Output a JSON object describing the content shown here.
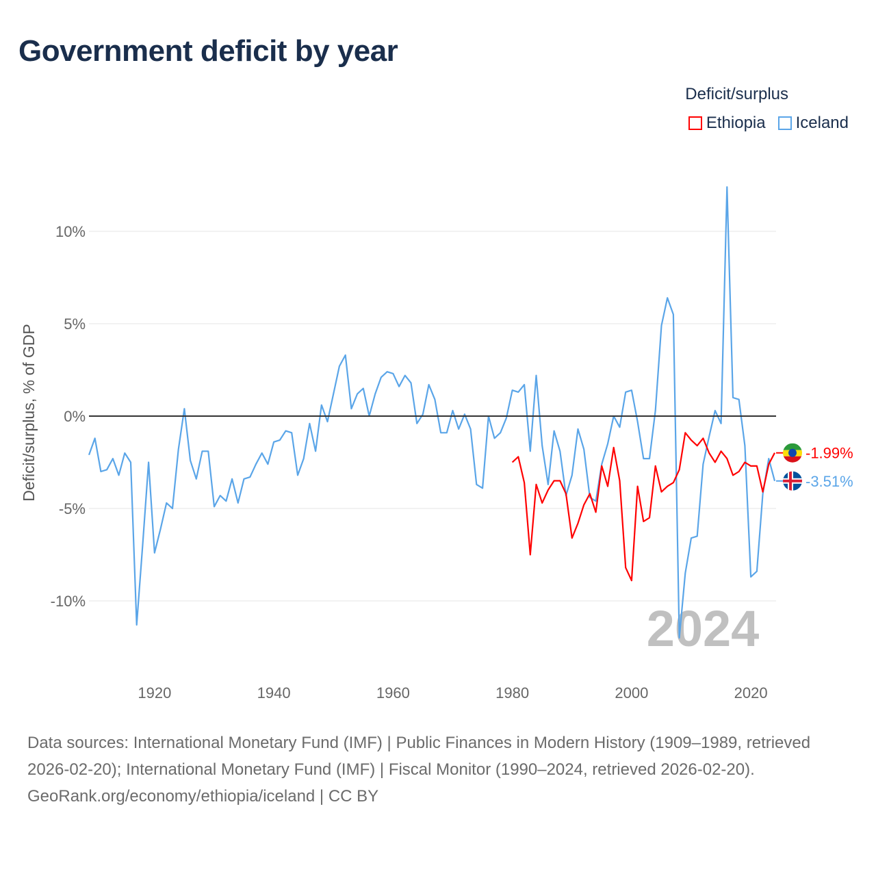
{
  "title": "Government deficit by year",
  "legend": {
    "title": "Deficit/surplus",
    "items": [
      {
        "label": "Ethiopia",
        "color": "#ff0000"
      },
      {
        "label": "Iceland",
        "color": "#5aa5e8"
      }
    ]
  },
  "chart_data": {
    "type": "line",
    "title": "Government deficit by year",
    "ylabel": "Deficit/surplus, % of GDP",
    "xlabel": "",
    "ylim": [
      -13,
      13
    ],
    "xlim": [
      1909,
      2024
    ],
    "yticks": [
      {
        "v": 10,
        "label": "10%"
      },
      {
        "v": 5,
        "label": "5%"
      },
      {
        "v": 0,
        "label": "0%"
      },
      {
        "v": -5,
        "label": "-5%"
      },
      {
        "v": -10,
        "label": "-10%"
      }
    ],
    "xticks": [
      {
        "v": 1920,
        "label": "1920"
      },
      {
        "v": 1940,
        "label": "1940"
      },
      {
        "v": 1960,
        "label": "1960"
      },
      {
        "v": 1980,
        "label": "1980"
      },
      {
        "v": 2000,
        "label": "2000"
      },
      {
        "v": 2020,
        "label": "2020"
      }
    ],
    "grid": true,
    "watermark_year": "2024",
    "series": [
      {
        "name": "Iceland",
        "color": "#5aa5e8",
        "start_year": 1909,
        "end_label": "-3.51%",
        "values": [
          -2.1,
          -1.2,
          -3.0,
          -2.9,
          -2.3,
          -3.2,
          -2.0,
          -2.5,
          -11.3,
          -7.0,
          -2.5,
          -7.4,
          -6.1,
          -4.7,
          -5.0,
          -1.8,
          0.4,
          -2.4,
          -3.4,
          -1.9,
          -1.9,
          -4.9,
          -4.3,
          -4.6,
          -3.4,
          -4.7,
          -3.4,
          -3.3,
          -2.6,
          -2.0,
          -2.6,
          -1.4,
          -1.3,
          -0.8,
          -0.9,
          -3.2,
          -2.3,
          -0.4,
          -1.9,
          0.6,
          -0.3,
          1.2,
          2.7,
          3.3,
          0.4,
          1.2,
          1.5,
          0.0,
          1.2,
          2.1,
          2.4,
          2.3,
          1.6,
          2.2,
          1.8,
          -0.4,
          0.1,
          1.7,
          0.9,
          -0.9,
          -0.9,
          0.3,
          -0.7,
          0.1,
          -0.7,
          -3.7,
          -3.9,
          0.0,
          -1.2,
          -0.9,
          -0.1,
          1.4,
          1.3,
          1.7,
          -1.9,
          2.2,
          -1.6,
          -3.7,
          -0.8,
          -1.9,
          -4.3,
          -3.2,
          -0.7,
          -1.8,
          -4.4,
          -4.6,
          -2.6,
          -1.5,
          0.0,
          -0.6,
          1.3,
          1.4,
          -0.3,
          -2.3,
          -2.3,
          0.3,
          4.9,
          6.4,
          5.5,
          -12.0,
          -8.5,
          -6.6,
          -6.5,
          -2.6,
          -1.1,
          0.3,
          -0.4,
          12.4,
          1.0,
          0.9,
          -1.6,
          -8.7,
          -8.4,
          -4.2,
          -2.3,
          -3.51
        ]
      },
      {
        "name": "Ethiopia",
        "color": "#ff0000",
        "start_year": 1980,
        "end_label": "-1.99%",
        "values": [
          -2.5,
          -2.2,
          -3.6,
          -7.5,
          -3.7,
          -4.7,
          -4.0,
          -3.5,
          -3.5,
          -4.2,
          -6.6,
          -5.8,
          -4.8,
          -4.2,
          -5.2,
          -2.7,
          -3.8,
          -1.7,
          -3.5,
          -8.2,
          -8.9,
          -3.8,
          -5.7,
          -5.5,
          -2.7,
          -4.1,
          -3.8,
          -3.6,
          -2.9,
          -0.9,
          -1.3,
          -1.6,
          -1.2,
          -2.0,
          -2.5,
          -1.9,
          -2.3,
          -3.2,
          -3.0,
          -2.5,
          -2.7,
          -2.7,
          -4.1,
          -2.6,
          -1.99
        ]
      }
    ]
  },
  "source": {
    "line1": "Data sources: International Monetary Fund (IMF) | Public Finances in Modern History (1909–1989, retrieved 2026-02-20); International Monetary Fund (IMF) | Fiscal Monitor (1990–2024, retrieved 2026-02-20).",
    "line2": "GeoRank.org/economy/ethiopia/iceland | CC BY"
  }
}
